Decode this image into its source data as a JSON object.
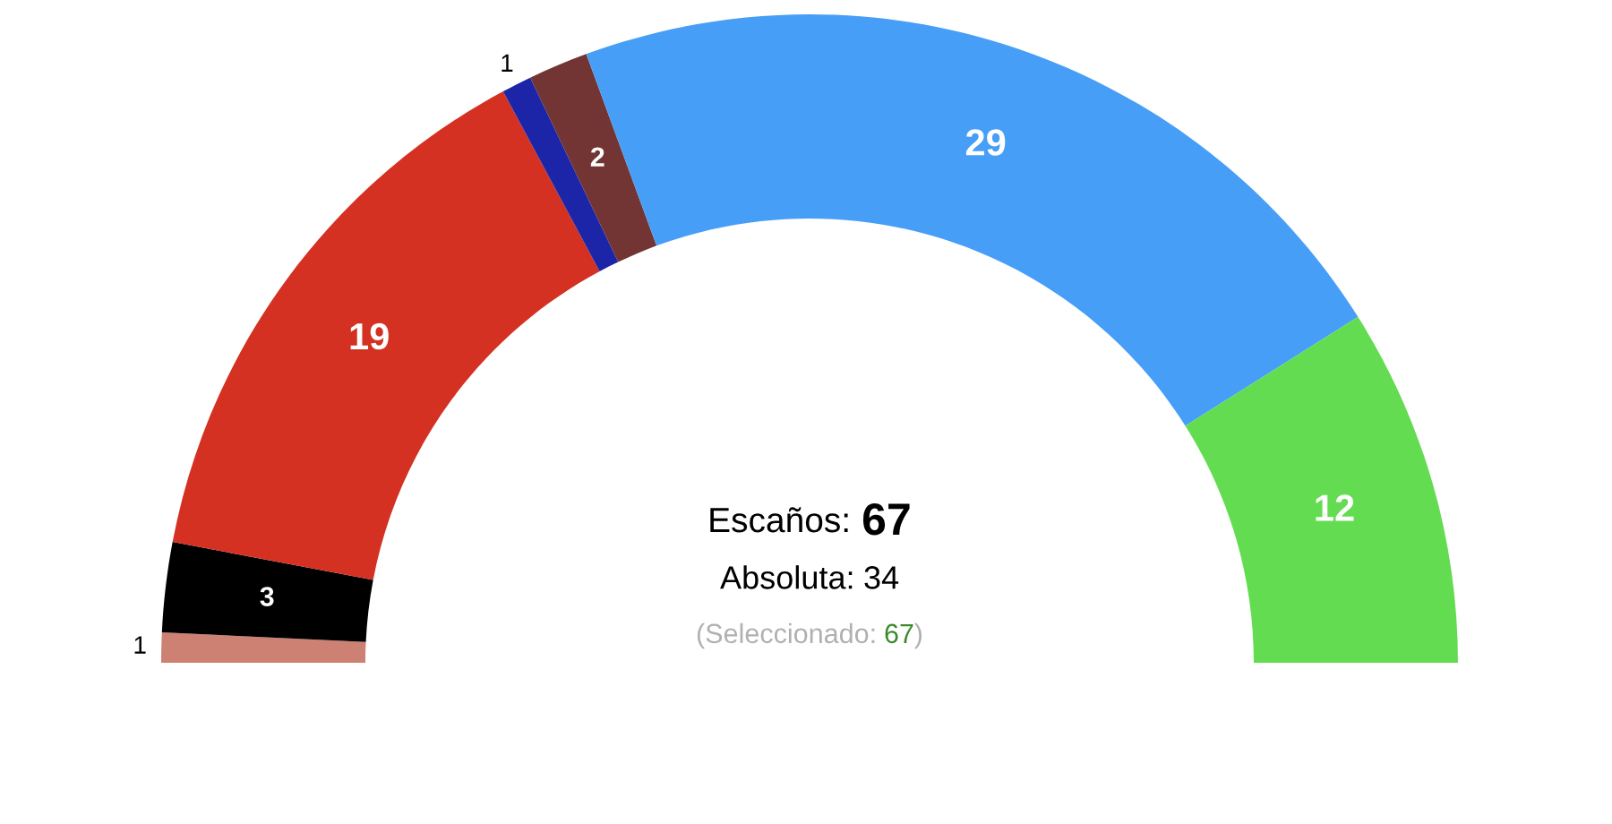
{
  "chart_data": {
    "type": "donut",
    "categories": [
      null,
      null,
      null,
      null,
      null,
      null,
      null
    ],
    "values": [
      1,
      3,
      19,
      1,
      2,
      29,
      12
    ],
    "colors": [
      "#cd8172",
      "#000000",
      "#d43122",
      "#1c25a8",
      "#733434",
      "#479ef7",
      "#64dc51"
    ],
    "data_labels": true,
    "annotations": [
      "Escaños: 67",
      "Absoluta: 34",
      "(Seleccionado: 67)"
    ]
  }
}
